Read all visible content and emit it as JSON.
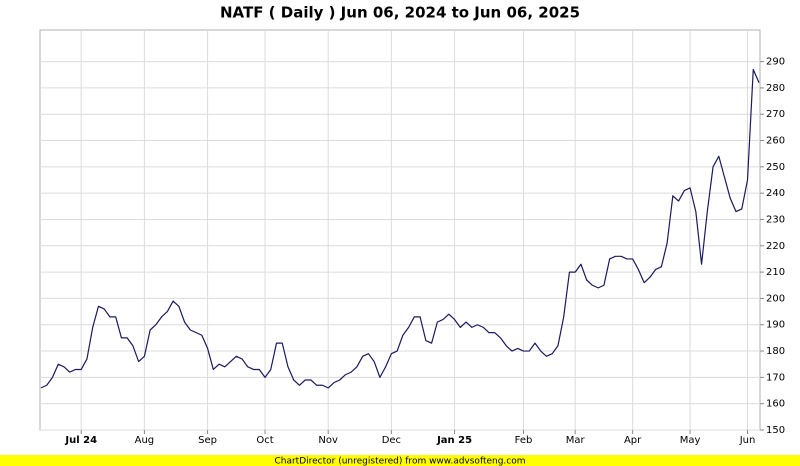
{
  "chart_data": {
    "type": "line",
    "title": "NATF ( Daily ) Jun 06, 2024 to Jun 06, 2025",
    "footer": "ChartDirector (unregistered) from www.advsofteng.com",
    "categories": [
      null,
      null,
      null,
      null,
      null,
      null,
      null,
      "Jul 24",
      null,
      null,
      null,
      null,
      null,
      null,
      null,
      null,
      null,
      null,
      "Aug",
      null,
      null,
      null,
      null,
      null,
      null,
      null,
      null,
      null,
      null,
      "Sep",
      null,
      null,
      null,
      null,
      null,
      null,
      null,
      null,
      null,
      "Oct",
      null,
      null,
      null,
      null,
      null,
      null,
      null,
      null,
      null,
      null,
      "Nov",
      null,
      null,
      null,
      null,
      null,
      null,
      null,
      null,
      null,
      null,
      "Dec",
      null,
      null,
      null,
      null,
      null,
      null,
      null,
      null,
      null,
      null,
      "Jan 25",
      null,
      null,
      null,
      null,
      null,
      null,
      null,
      null,
      null,
      null,
      null,
      "Feb",
      null,
      null,
      null,
      null,
      null,
      null,
      null,
      null,
      "Mar",
      null,
      null,
      null,
      null,
      null,
      null,
      null,
      null,
      null,
      "Apr",
      null,
      null,
      null,
      null,
      null,
      null,
      null,
      null,
      null,
      "May",
      null,
      null,
      null,
      null,
      null,
      null,
      null,
      null,
      null,
      "Jun",
      null,
      null
    ],
    "series": [
      {
        "name": "NATF",
        "color": "#1a1a5e",
        "values": [
          166,
          167,
          170,
          175,
          174,
          172,
          173,
          173,
          177,
          189,
          197,
          196,
          193,
          193,
          185,
          185,
          182,
          176,
          178,
          188,
          190,
          193,
          195,
          199,
          197,
          191,
          188,
          187,
          186,
          181,
          173,
          175,
          174,
          176,
          178,
          177,
          174,
          173,
          173,
          170,
          173,
          183,
          183,
          174,
          169,
          167,
          169,
          169,
          167,
          167,
          166,
          168,
          169,
          171,
          172,
          174,
          178,
          179,
          176,
          170,
          174,
          179,
          180,
          186,
          189,
          193,
          193,
          184,
          183,
          191,
          192,
          194,
          192,
          189,
          191,
          189,
          190,
          189,
          187,
          187,
          185,
          182,
          180,
          181,
          180,
          180,
          183,
          180,
          178,
          179,
          182,
          193,
          210,
          210,
          213,
          207,
          205,
          204,
          205,
          215,
          216,
          216,
          215,
          215,
          211,
          206,
          208,
          211,
          212,
          221,
          239,
          237,
          241,
          242,
          233,
          213,
          233,
          250,
          254,
          246,
          238,
          233,
          234,
          245,
          287,
          282
        ]
      }
    ],
    "ylim": [
      150,
      302
    ],
    "yticks": [
      150,
      160,
      170,
      180,
      190,
      200,
      210,
      220,
      230,
      240,
      250,
      260,
      270,
      280,
      290
    ],
    "grid": true
  }
}
